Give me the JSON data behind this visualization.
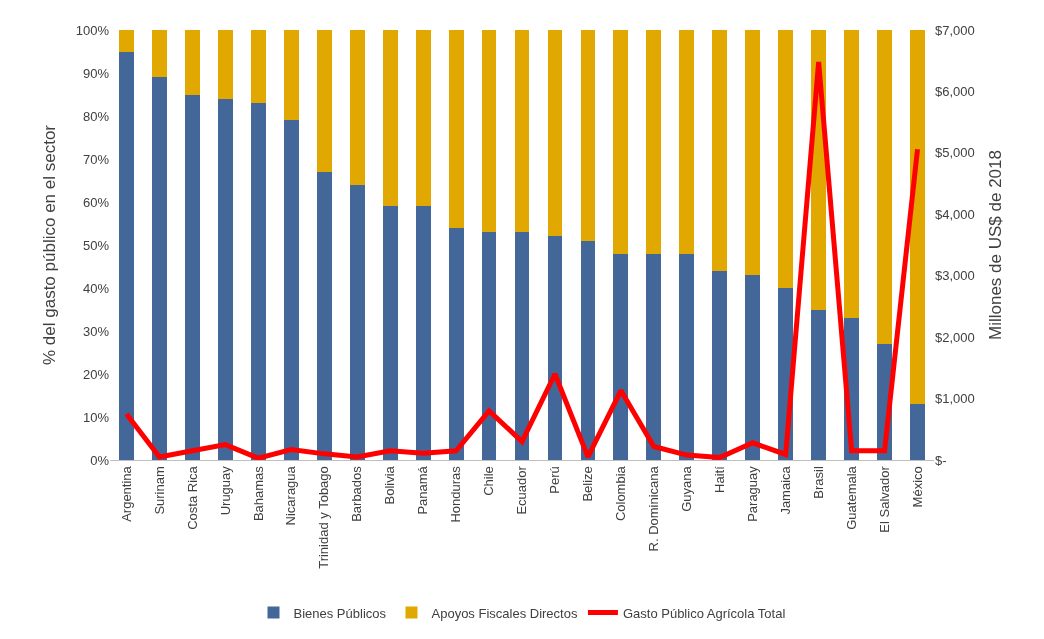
{
  "chart_data": {
    "type": "bar",
    "stacked": true,
    "ylabel": "% del gasto público en el sector",
    "y2label": "Millones de US$ de 2018",
    "categories": [
      "Argentina",
      "Surinam",
      "Costa Rica",
      "Uruguay",
      "Bahamas",
      "Nicaragua",
      "Trinidad y Tobago",
      "Barbados",
      "Bolivia",
      "Panamá",
      "Honduras",
      "Chile",
      "Ecuador",
      "Perú",
      "Belize",
      "Colombia",
      "R. Dominicana",
      "Guyana",
      "Haití",
      "Paraguay",
      "Jamaica",
      "Brasil",
      "Guatemala",
      "El Salvador",
      "México"
    ],
    "series": [
      {
        "name": "Bienes Públicos",
        "color": "#44679a",
        "values": [
          95,
          89,
          85,
          84,
          83,
          79,
          67,
          64,
          59,
          59,
          54,
          53,
          53,
          52,
          51,
          48,
          48,
          48,
          44,
          43,
          40,
          35,
          33,
          27,
          13
        ]
      },
      {
        "name": "Apoyos Fiscales Directos",
        "color": "#e0a800",
        "values": [
          5,
          11,
          15,
          16,
          17,
          21,
          33,
          36,
          41,
          41,
          46,
          47,
          47,
          48,
          49,
          52,
          52,
          52,
          56,
          57,
          60,
          65,
          67,
          73,
          87
        ]
      },
      {
        "name": "Gasto Público Agrícola Total",
        "type": "line",
        "axis": "y2",
        "color": "#ff0000",
        "values": [
          750,
          50,
          150,
          250,
          30,
          170,
          100,
          50,
          150,
          110,
          150,
          800,
          300,
          1400,
          50,
          1130,
          220,
          80,
          40,
          280,
          90,
          6480,
          150,
          150,
          5060
        ]
      }
    ],
    "ylim": [
      0,
      100
    ],
    "yticks": [
      {
        "value": 0,
        "label": "0%"
      },
      {
        "value": 10,
        "label": "10%"
      },
      {
        "value": 20,
        "label": "20%"
      },
      {
        "value": 30,
        "label": "30%"
      },
      {
        "value": 40,
        "label": "40%"
      },
      {
        "value": 50,
        "label": "50%"
      },
      {
        "value": 60,
        "label": "60%"
      },
      {
        "value": 70,
        "label": "70%"
      },
      {
        "value": 80,
        "label": "80%"
      },
      {
        "value": 90,
        "label": "90%"
      },
      {
        "value": 100,
        "label": "100%"
      }
    ],
    "y2lim": [
      0,
      7000
    ],
    "y2ticks": [
      {
        "value": 0,
        "label": "$-"
      },
      {
        "value": 1000,
        "label": "$1,000"
      },
      {
        "value": 2000,
        "label": "$2,000"
      },
      {
        "value": 3000,
        "label": "$3,000"
      },
      {
        "value": 4000,
        "label": "$4,000"
      },
      {
        "value": 5000,
        "label": "$5,000"
      },
      {
        "value": 6000,
        "label": "$6,000"
      },
      {
        "value": 7000,
        "label": "$7,000"
      }
    ],
    "legend": "bottom"
  }
}
